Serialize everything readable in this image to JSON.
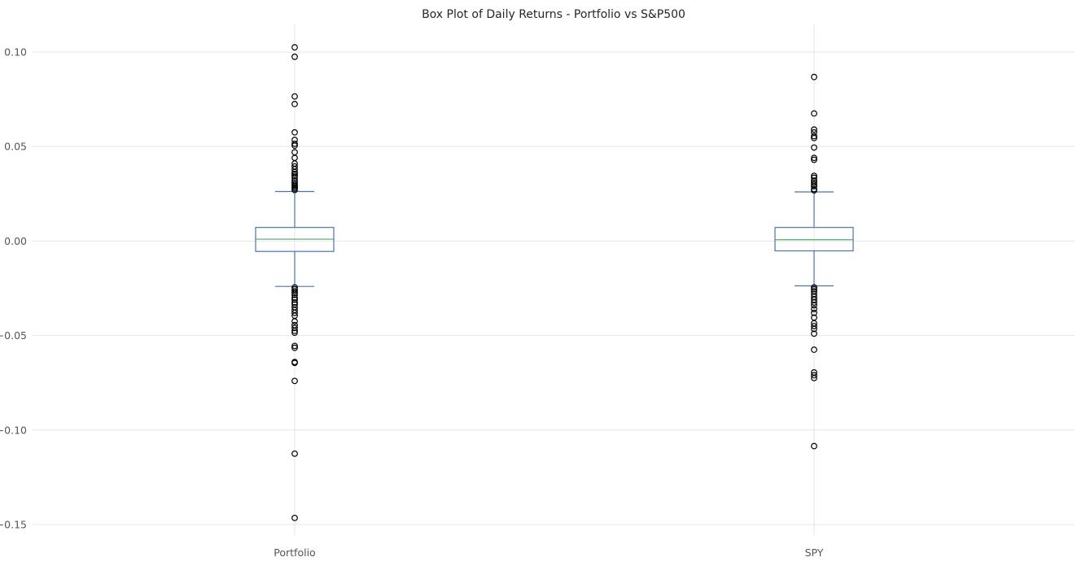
{
  "chart_data": {
    "type": "box",
    "title": "Box Plot of Daily Returns - Portfolio vs S&P500",
    "xlabel": "",
    "ylabel": "",
    "ylim": [
      -0.155,
      0.1145
    ],
    "yticks": [
      0.1,
      0.05,
      0.0,
      -0.05,
      -0.1,
      -0.15
    ],
    "ytick_labels": [
      "0.10",
      "0.05",
      "0.00",
      "−0.05",
      "−0.10",
      "−0.15"
    ],
    "grid": true,
    "legend": "none",
    "categories": [
      "Portfolio",
      "SPY"
    ],
    "series": [
      {
        "q1": -0.0055,
        "median": 0.001,
        "q3": 0.0072,
        "whisker_low": -0.024,
        "whisker_high": 0.0262,
        "fliers": [
          0.1025,
          0.0975,
          0.0765,
          0.0725,
          0.0575,
          0.0535,
          0.0515,
          0.0505,
          0.047,
          0.044,
          0.041,
          0.0395,
          0.038,
          0.0365,
          0.0355,
          0.0345,
          0.0335,
          0.032,
          0.031,
          0.03,
          0.0292,
          0.0285,
          0.0278,
          0.027,
          -0.0245,
          -0.0255,
          -0.0265,
          -0.0275,
          -0.0285,
          -0.03,
          -0.031,
          -0.0325,
          -0.0335,
          -0.035,
          -0.0365,
          -0.038,
          -0.0395,
          -0.0425,
          -0.0445,
          -0.046,
          -0.0475,
          -0.0485,
          -0.0555,
          -0.0565,
          -0.064,
          -0.0645,
          -0.074,
          -0.1125,
          -0.1465
        ]
      },
      {
        "q1": -0.0052,
        "median": 0.0007,
        "q3": 0.0072,
        "whisker_low": -0.0237,
        "whisker_high": 0.026,
        "fliers": [
          0.0868,
          0.0675,
          0.059,
          0.0575,
          0.0555,
          0.0545,
          0.0495,
          0.044,
          0.043,
          0.0345,
          0.0335,
          0.032,
          0.031,
          0.03,
          0.029,
          0.0275,
          0.0268,
          -0.0245,
          -0.0255,
          -0.0265,
          -0.028,
          -0.0295,
          -0.031,
          -0.0325,
          -0.034,
          -0.036,
          -0.038,
          -0.0405,
          -0.0435,
          -0.045,
          -0.0465,
          -0.049,
          -0.0575,
          -0.0695,
          -0.071,
          -0.0725,
          -0.1085
        ]
      }
    ]
  }
}
